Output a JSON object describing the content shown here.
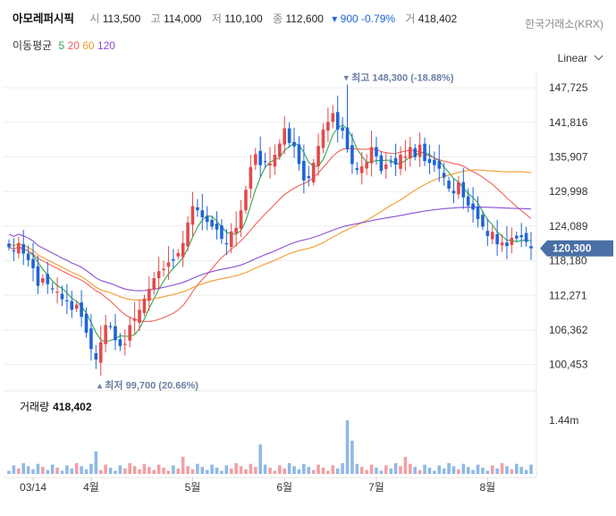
{
  "header": {
    "name": "아모레퍼시픽",
    "open_label": "시",
    "open": "113,500",
    "high_label": "고",
    "high": "114,000",
    "low_label": "저",
    "low": "110,100",
    "close_label": "종",
    "close": "112,600",
    "change": "▾ 900 -0.79%",
    "volume_label": "거",
    "volume": "418,402",
    "exchange": "한국거래소(KRX)"
  },
  "ma_legend": {
    "label": "이동평균",
    "items": [
      {
        "period": "5",
        "color": "#2ea84a"
      },
      {
        "period": "20",
        "color": "#f2615a"
      },
      {
        "period": "60",
        "color": "#f39a2e"
      },
      {
        "period": "120",
        "color": "#8a4fd6"
      }
    ]
  },
  "scale_toggle": "Linear",
  "chart_data": {
    "type": "candlestick",
    "price_axis": {
      "ticks": [
        100453,
        106362,
        112271,
        118180,
        124089,
        129998,
        135907,
        141816,
        147725
      ],
      "tick_labels": [
        "100,453",
        "106,362",
        "112,271",
        "118,180",
        "124,089",
        "129,998",
        "135,907",
        "141,816",
        "147,725"
      ],
      "range": [
        97800,
        150500
      ]
    },
    "last_price_label": "120,300",
    "last_price": 120300,
    "max_annotation": "▾ 최고 148,300 (-18.88%)",
    "min_annotation": "▴ 최저 99,700 (20.66%)",
    "x_ticks": [
      {
        "label": "03/14",
        "index": 5
      },
      {
        "label": "4월",
        "index": 17
      },
      {
        "label": "5월",
        "index": 38
      },
      {
        "label": "6월",
        "index": 57
      },
      {
        "label": "7월",
        "index": 76
      },
      {
        "label": "8월",
        "index": 99
      }
    ],
    "closes": [
      120500,
      119800,
      121200,
      119400,
      118300,
      116900,
      113900,
      115200,
      114200,
      113400,
      112900,
      111600,
      111300,
      109800,
      110700,
      108600,
      105900,
      103100,
      101300,
      104300,
      107200,
      107000,
      104600,
      103600,
      104000,
      107200,
      108300,
      109800,
      111700,
      113400,
      115200,
      116400,
      116800,
      117900,
      118200,
      119500,
      121200,
      124700,
      127500,
      126800,
      125600,
      124800,
      124000,
      123500,
      121900,
      121100,
      123200,
      123800,
      126800,
      130300,
      134200,
      136400,
      134500,
      135200,
      134800,
      136300,
      138200,
      140800,
      138300,
      137700,
      134700,
      131900,
      132300,
      134900,
      137800,
      140600,
      141900,
      143400,
      140600,
      140400,
      137200,
      134700,
      133700,
      134300,
      135000,
      137600,
      136000,
      133500,
      134600,
      135000,
      134600,
      136300,
      136000,
      137600,
      135900,
      138000,
      135200,
      134900,
      134500,
      133900,
      132400,
      130500,
      129700,
      131600,
      129000,
      127600,
      126900,
      125300,
      124000,
      122400,
      123100,
      121000,
      121300,
      120700,
      122100,
      122000,
      122200,
      121400,
      120300
    ],
    "volume_axis": {
      "ticks": [
        1440000
      ],
      "tick_labels": [
        "1.44m"
      ]
    },
    "volume_title": "거래량",
    "volume_value": "418,402"
  },
  "colors": {
    "up": "#e24b4b",
    "down": "#1f64d6",
    "up_vol": "#f0a0a4",
    "down_vol": "#8fb9e6",
    "badge": "#4a6fa5"
  }
}
